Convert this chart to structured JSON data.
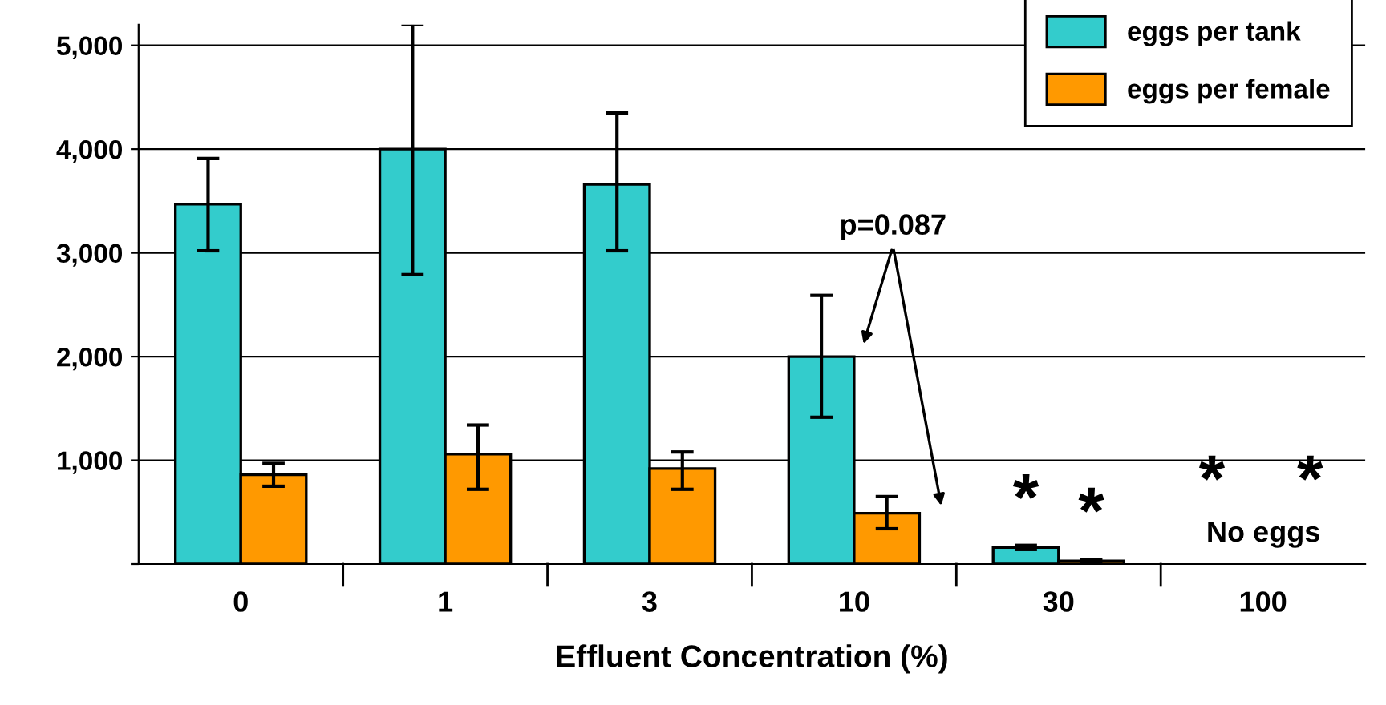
{
  "chart_data": {
    "type": "bar",
    "xlabel": "Effluent Concentration (%)",
    "categories": [
      "0",
      "1",
      "3",
      "10",
      "30",
      "100"
    ],
    "series": [
      {
        "name": "eggs per tank",
        "color": "#33cccc",
        "values": [
          3470,
          4000,
          3660,
          2000,
          160,
          null
        ],
        "errors": [
          [
            3020,
            3910
          ],
          [
            2790,
            5200
          ],
          [
            3020,
            4350
          ],
          [
            1415,
            2590
          ],
          [
            140,
            180
          ],
          null
        ]
      },
      {
        "name": "eggs per female",
        "color": "#ff9900",
        "values": [
          860,
          1060,
          920,
          490,
          30,
          null
        ],
        "errors": [
          [
            750,
            970
          ],
          [
            720,
            1340
          ],
          [
            720,
            1080
          ],
          [
            340,
            650
          ],
          [
            20,
            40
          ],
          null
        ]
      }
    ],
    "ylim": [
      0,
      5200
    ],
    "yticks": [
      {
        "value": 0,
        "label": null
      },
      {
        "value": 1000,
        "label": "1,000"
      },
      {
        "value": 2000,
        "label": "2,000"
      },
      {
        "value": 3000,
        "label": "3,000"
      },
      {
        "value": 4000,
        "label": "4,000"
      },
      {
        "value": 5000,
        "label": "5,000"
      }
    ],
    "grid": "y",
    "legend": "top right",
    "annotations": [
      "p=0.087",
      {
        "text": "*",
        "x": "30",
        "y": 160
      },
      {
        "text": "*",
        "x": "30",
        "y": 30
      },
      "*",
      "*",
      "No eggs"
    ]
  }
}
